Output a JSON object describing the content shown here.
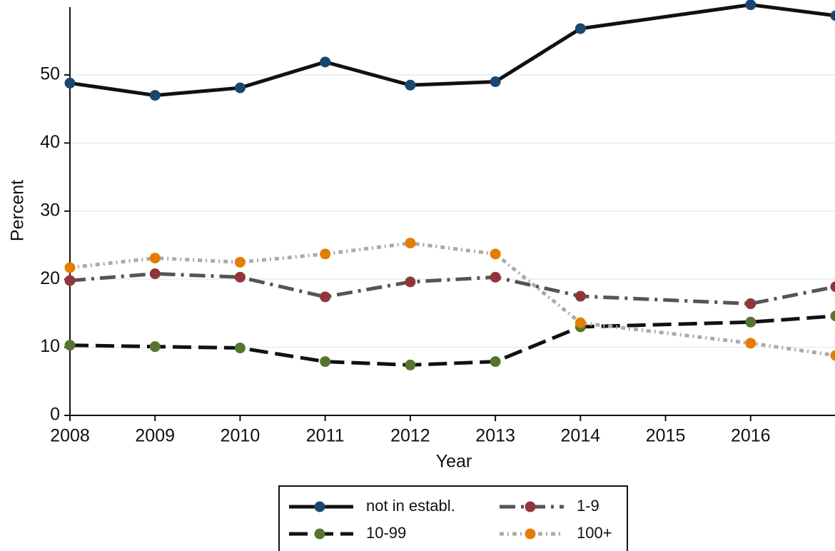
{
  "chart_data": {
    "type": "line",
    "x": [
      2008,
      2009,
      2010,
      2011,
      2012,
      2013,
      2014,
      2016,
      2017
    ],
    "xlabel": "Year",
    "ylabel": "Percent",
    "xlim": [
      2008,
      2017
    ],
    "xticks": [
      2008,
      2009,
      2010,
      2011,
      2012,
      2013,
      2014,
      2015,
      2016
    ],
    "ylim": [
      0,
      61
    ],
    "yticks": [
      0,
      10,
      20,
      30,
      40,
      50
    ],
    "grid": true,
    "legend": "bottom",
    "series": [
      {
        "name": "not in establ.",
        "color": "#1a476f",
        "line_color": "#111111",
        "dash": "none",
        "values": [
          48.8,
          47.0,
          48.1,
          51.9,
          48.5,
          49.0,
          56.8,
          60.3,
          58.7
        ]
      },
      {
        "name": "1-9",
        "color": "#90353b",
        "line_color": "#555555",
        "dash": "22 8 4 8",
        "values": [
          19.8,
          20.8,
          20.3,
          17.4,
          19.6,
          20.3,
          17.5,
          16.4,
          18.9
        ]
      },
      {
        "name": "10-99",
        "color": "#55752f",
        "line_color": "#111111",
        "dash": "26 10",
        "values": [
          10.3,
          10.1,
          9.9,
          7.9,
          7.4,
          7.9,
          13.0,
          13.7,
          14.6
        ]
      },
      {
        "name": "100+",
        "color": "#e37e00",
        "line_color": "#aaaaaa",
        "dash": "6 5 2 5",
        "values": [
          21.7,
          23.1,
          22.5,
          23.7,
          25.3,
          23.7,
          13.6,
          10.6,
          8.8
        ]
      }
    ]
  }
}
